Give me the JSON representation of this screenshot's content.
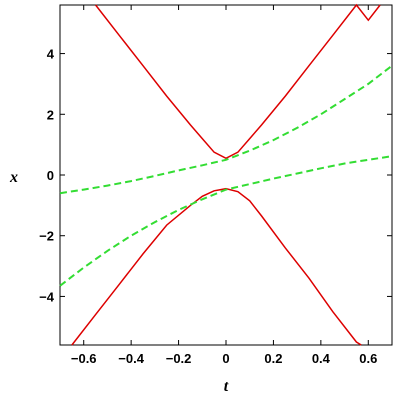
{
  "chart_data": {
    "type": "line",
    "title": "",
    "xlabel": "t",
    "ylabel": "x",
    "xlim": [
      -0.7,
      0.7
    ],
    "ylim": [
      -5.6,
      5.6
    ],
    "x_ticks": [
      -0.6,
      -0.4,
      -0.2,
      0,
      0.2,
      0.4,
      0.6
    ],
    "x_tick_labels": [
      "−0.6",
      "−0.4",
      "−0.2",
      "0",
      "0.2",
      "0.4",
      "0.6"
    ],
    "y_ticks": [
      -4,
      -2,
      0,
      2,
      4
    ],
    "y_tick_labels": [
      "−4",
      "−2",
      "0",
      "2",
      "4"
    ],
    "grid": false,
    "series": [
      {
        "style": "solid",
        "color": "#dd0000",
        "x": [
          -0.55,
          -0.45,
          -0.35,
          -0.25,
          -0.15,
          -0.1,
          -0.05,
          0,
          0.05,
          0.1,
          0.15,
          0.25,
          0.35,
          0.45,
          0.55,
          0.6,
          0.65
        ],
        "y": [
          5.6,
          4.6,
          3.6,
          2.6,
          1.65,
          1.2,
          0.75,
          0.55,
          0.75,
          1.2,
          1.65,
          2.6,
          3.6,
          4.6,
          5.6,
          5.1,
          5.6
        ]
      },
      {
        "style": "solid",
        "color": "#dd0000",
        "x": [
          -0.65,
          -0.55,
          -0.45,
          -0.35,
          -0.25,
          -0.15,
          -0.1,
          -0.05,
          0,
          0.05,
          0.1,
          0.15,
          0.25,
          0.35,
          0.45,
          0.55,
          0.57
        ],
        "y": [
          -5.6,
          -4.6,
          -3.6,
          -2.6,
          -1.65,
          -1.0,
          -0.7,
          -0.52,
          -0.45,
          -0.55,
          -0.85,
          -1.35,
          -2.4,
          -3.4,
          -4.5,
          -5.5,
          -5.6
        ]
      },
      {
        "style": "dashed",
        "color": "#33dd33",
        "x": [
          -0.7,
          -0.6,
          -0.5,
          -0.4,
          -0.3,
          -0.2,
          -0.1,
          0,
          0.1,
          0.2,
          0.3,
          0.4,
          0.5,
          0.6,
          0.7
        ],
        "y": [
          -0.6,
          -0.48,
          -0.35,
          -0.2,
          -0.03,
          0.15,
          0.32,
          0.5,
          0.8,
          1.15,
          1.55,
          2.0,
          2.5,
          3.0,
          3.6
        ]
      },
      {
        "style": "dashed",
        "color": "#33dd33",
        "x": [
          -0.7,
          -0.6,
          -0.5,
          -0.4,
          -0.3,
          -0.2,
          -0.1,
          0,
          0.1,
          0.2,
          0.3,
          0.4,
          0.5,
          0.6,
          0.7
        ],
        "y": [
          -3.65,
          -3.05,
          -2.5,
          -2.0,
          -1.55,
          -1.15,
          -0.8,
          -0.48,
          -0.3,
          -0.12,
          0.05,
          0.22,
          0.38,
          0.5,
          0.62
        ]
      }
    ]
  }
}
